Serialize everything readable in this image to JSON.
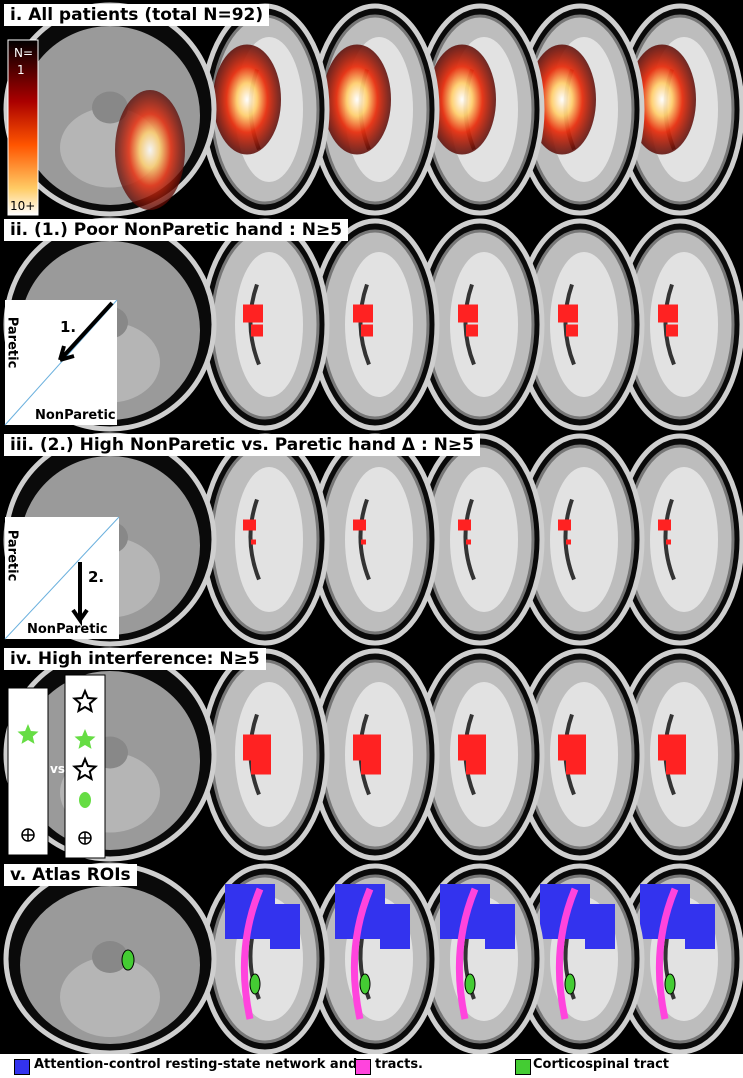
{
  "panels": [
    {
      "title": "i. All patients (total N=92)",
      "colorbar": {
        "title": "N=",
        "low": "1",
        "high": "10+"
      }
    },
    {
      "title": "ii. (1.) Poor NonParetic hand : N≥5",
      "inset": {
        "y_label": "Paretic",
        "x_label": "NonParetic",
        "arrow_label": "1."
      }
    },
    {
      "title": "iii. (2.) High NonParetic vs. Paretic hand Δ : N≥5",
      "inset": {
        "y_label": "Paretic",
        "x_label": "NonParetic",
        "arrow_label": "2."
      }
    },
    {
      "title": "iv. High interference: N≥5",
      "inset": {
        "separator": "vs."
      }
    },
    {
      "title": "v. Atlas ROIs"
    }
  ],
  "legend": [
    {
      "label": "Attention-control resting-state network  and",
      "color": "#3333ee"
    },
    {
      "label": "tracts.",
      "color": "#ff44dd"
    },
    {
      "label": "Corticospinal tract",
      "color": "#44cc33"
    }
  ]
}
